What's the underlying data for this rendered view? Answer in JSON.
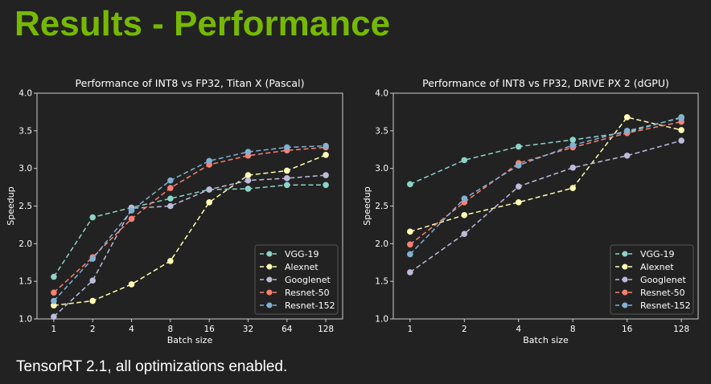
{
  "slide": {
    "title": "Results - Performance",
    "footnote": "TensorRT 2.1, all optimizations enabled."
  },
  "colors": {
    "title": "#76b900",
    "background": "#222222",
    "axis": "#cccccc",
    "text": "#ffffff"
  },
  "chart_data": [
    {
      "type": "line",
      "title": "Performance of INT8 vs FP32, Titan X (Pascal)",
      "xlabel": "Batch size",
      "ylabel": "Speedup",
      "categories": [
        "1",
        "2",
        "4",
        "8",
        "16",
        "32",
        "64",
        "128"
      ],
      "ylim": [
        1.0,
        4.0
      ],
      "yticks": [
        "1.0",
        "1.5",
        "2.0",
        "2.5",
        "3.0",
        "3.5",
        "4.0"
      ],
      "legend_position": "lower-right",
      "series": [
        {
          "name": "VGG-19",
          "color": "#8dd3c7",
          "values": [
            1.56,
            2.35,
            2.48,
            2.6,
            2.72,
            2.73,
            2.78,
            2.78
          ]
        },
        {
          "name": "Alexnet",
          "color": "#ffffb3",
          "values": [
            1.18,
            1.24,
            1.46,
            1.77,
            2.55,
            2.91,
            2.97,
            3.18
          ]
        },
        {
          "name": "Googlenet",
          "color": "#bebada",
          "values": [
            1.03,
            1.51,
            2.47,
            2.5,
            2.72,
            2.84,
            2.87,
            2.91
          ]
        },
        {
          "name": "Resnet-50",
          "color": "#fb8072",
          "values": [
            1.35,
            1.82,
            2.33,
            2.74,
            3.05,
            3.17,
            3.24,
            3.28
          ]
        },
        {
          "name": "Resnet-152",
          "color": "#80b1d3",
          "values": [
            1.24,
            1.8,
            2.44,
            2.84,
            3.1,
            3.22,
            3.28,
            3.3
          ]
        }
      ]
    },
    {
      "type": "line",
      "title": "Performance of INT8 vs FP32, DRIVE PX 2 (dGPU)",
      "xlabel": "Batch size",
      "ylabel": "Speedup",
      "categories": [
        "1",
        "2",
        "4",
        "8",
        "16",
        "128"
      ],
      "ylim": [
        1.0,
        4.0
      ],
      "yticks": [
        "1.0",
        "1.5",
        "2.0",
        "2.5",
        "3.0",
        "3.5",
        "4.0"
      ],
      "legend_position": "lower-right",
      "series": [
        {
          "name": "VGG-19",
          "color": "#8dd3c7",
          "values": [
            2.79,
            3.11,
            3.29,
            3.38,
            3.48,
            3.68
          ]
        },
        {
          "name": "Alexnet",
          "color": "#ffffb3",
          "values": [
            2.16,
            2.38,
            2.55,
            2.74,
            3.68,
            3.51
          ]
        },
        {
          "name": "Googlenet",
          "color": "#bebada",
          "values": [
            1.62,
            2.13,
            2.76,
            3.01,
            3.17,
            3.37
          ]
        },
        {
          "name": "Resnet-50",
          "color": "#fb8072",
          "values": [
            1.99,
            2.55,
            3.07,
            3.28,
            3.47,
            3.62
          ]
        },
        {
          "name": "Resnet-152",
          "color": "#80b1d3",
          "values": [
            1.86,
            2.6,
            3.04,
            3.31,
            3.5,
            3.67
          ]
        }
      ]
    }
  ]
}
